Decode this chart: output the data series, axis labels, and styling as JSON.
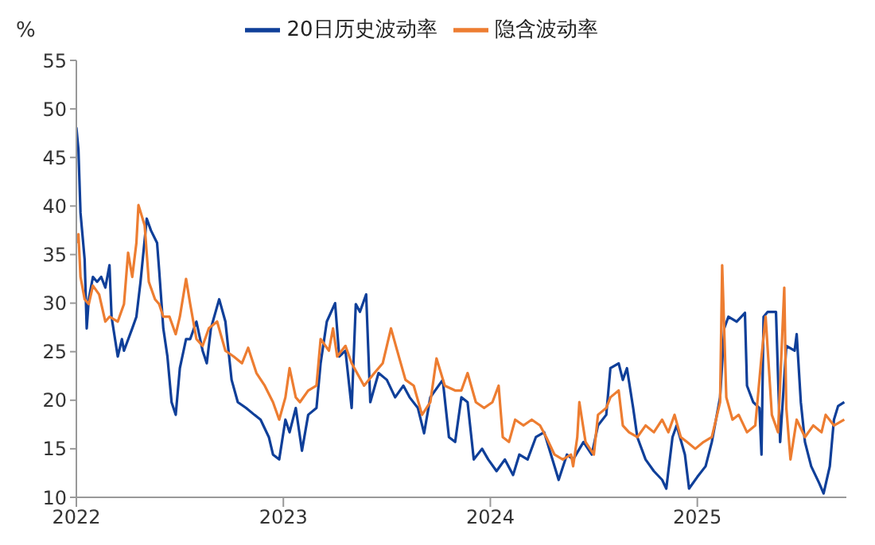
{
  "chart_data": {
    "type": "line",
    "ylabel": "%",
    "xlim": [
      2022,
      2025.72
    ],
    "xticks": [
      2022,
      2023,
      2024,
      2025
    ],
    "ylim": [
      10,
      55
    ],
    "yticks": [
      10,
      15,
      20,
      25,
      30,
      35,
      40,
      45,
      50,
      55
    ],
    "legend": "top",
    "marker": "none",
    "line_style": "solid",
    "series": [
      {
        "name": "20日历史波动率",
        "color": "#0f3f99",
        "x": [
          2022.0,
          2022.01,
          2022.02,
          2022.04,
          2022.05,
          2022.06,
          2022.08,
          2022.1,
          2022.12,
          2022.14,
          2022.16,
          2022.17,
          2022.2,
          2022.22,
          2022.23,
          2022.27,
          2022.29,
          2022.31,
          2022.34,
          2022.36,
          2022.39,
          2022.4,
          2022.42,
          2022.44,
          2022.46,
          2022.48,
          2022.5,
          2022.53,
          2022.55,
          2022.58,
          2022.61,
          2022.63,
          2022.65,
          2022.69,
          2022.72,
          2022.75,
          2022.78,
          2022.82,
          2022.86,
          2022.89,
          2022.93,
          2022.95,
          2022.98,
          2023.01,
          2023.03,
          2023.06,
          2023.09,
          2023.12,
          2023.16,
          2023.18,
          2023.21,
          2023.25,
          2023.27,
          2023.3,
          2023.33,
          2023.35,
          2023.37,
          2023.4,
          2023.42,
          2023.46,
          2023.5,
          2023.54,
          2023.58,
          2023.61,
          2023.65,
          2023.68,
          2023.71,
          2023.77,
          2023.8,
          2023.83,
          2023.86,
          2023.89,
          2023.92,
          2023.96,
          2023.99,
          2024.03,
          2024.07,
          2024.11,
          2024.14,
          2024.18,
          2024.22,
          2024.26,
          2024.3,
          2024.33,
          2024.37,
          2024.4,
          2024.45,
          2024.49,
          2024.52,
          2024.56,
          2024.58,
          2024.62,
          2024.64,
          2024.66,
          2024.69,
          2024.71,
          2024.75,
          2024.79,
          2024.83,
          2024.85,
          2024.88,
          2024.9,
          2024.94,
          2024.96,
          2025.0,
          2025.04,
          2025.07,
          2025.11,
          2025.13,
          2025.15,
          2025.19,
          2025.23,
          2025.24,
          2025.27,
          2025.3,
          2025.31,
          2025.32,
          2025.34,
          2025.38,
          2025.4,
          2025.43,
          2025.47,
          2025.48,
          2025.5,
          2025.52,
          2025.55,
          2025.59,
          2025.61,
          2025.64,
          2025.66,
          2025.68,
          2025.71
        ],
        "values": [
          48.1,
          45.8,
          39.3,
          34.5,
          27.4,
          30.4,
          32.7,
          32.2,
          32.7,
          31.6,
          33.9,
          28.6,
          24.5,
          26.3,
          25.1,
          27.4,
          28.6,
          32.2,
          38.7,
          37.5,
          36.2,
          33.4,
          27.4,
          24.5,
          19.8,
          18.5,
          23.3,
          26.3,
          26.3,
          28.1,
          25.1,
          23.8,
          27.4,
          30.4,
          28.1,
          22.1,
          19.8,
          19.2,
          18.5,
          18.0,
          16.2,
          14.4,
          13.9,
          18.0,
          16.7,
          19.2,
          14.8,
          18.5,
          19.2,
          23.8,
          28.1,
          30.0,
          24.5,
          25.1,
          19.2,
          29.9,
          29.1,
          30.9,
          19.8,
          22.8,
          22.1,
          20.3,
          21.5,
          20.3,
          19.2,
          16.6,
          20.3,
          22.1,
          16.2,
          15.7,
          20.3,
          19.8,
          13.9,
          15.0,
          13.9,
          12.7,
          13.9,
          12.3,
          14.4,
          13.9,
          16.2,
          16.7,
          13.9,
          11.8,
          14.4,
          13.9,
          15.7,
          14.4,
          17.4,
          18.5,
          23.3,
          23.8,
          22.1,
          23.3,
          19.2,
          16.2,
          13.9,
          12.7,
          11.8,
          10.9,
          16.2,
          17.4,
          14.4,
          10.9,
          12.1,
          13.2,
          15.7,
          20.3,
          27.4,
          28.6,
          28.1,
          29.0,
          21.5,
          19.8,
          19.2,
          14.4,
          28.6,
          29.1,
          29.1,
          15.7,
          25.6,
          25.1,
          26.8,
          19.8,
          15.7,
          13.2,
          11.4,
          10.4,
          13.2,
          18.0,
          19.4,
          19.8
        ]
      },
      {
        "name": "隐含波动率",
        "color": "#ed7d31",
        "x": [
          2022.0,
          2022.01,
          2022.02,
          2022.04,
          2022.06,
          2022.08,
          2022.11,
          2022.14,
          2022.16,
          2022.2,
          2022.23,
          2022.25,
          2022.27,
          2022.29,
          2022.3,
          2022.33,
          2022.35,
          2022.38,
          2022.4,
          2022.42,
          2022.45,
          2022.48,
          2022.5,
          2022.53,
          2022.55,
          2022.58,
          2022.61,
          2022.64,
          2022.68,
          2022.72,
          2022.76,
          2022.8,
          2022.83,
          2022.87,
          2022.91,
          2022.95,
          2022.98,
          2023.01,
          2023.03,
          2023.06,
          2023.08,
          2023.12,
          2023.16,
          2023.18,
          2023.22,
          2023.24,
          2023.26,
          2023.3,
          2023.33,
          2023.39,
          2023.44,
          2023.48,
          2023.52,
          2023.55,
          2023.59,
          2023.63,
          2023.67,
          2023.71,
          2023.74,
          2023.78,
          2023.83,
          2023.86,
          2023.89,
          2023.93,
          2023.97,
          2024.01,
          2024.04,
          2024.06,
          2024.09,
          2024.12,
          2024.16,
          2024.2,
          2024.24,
          2024.27,
          2024.31,
          2024.35,
          2024.39,
          2024.4,
          2024.42,
          2024.43,
          2024.46,
          2024.5,
          2024.52,
          2024.56,
          2024.58,
          2024.62,
          2024.64,
          2024.67,
          2024.71,
          2024.75,
          2024.79,
          2024.83,
          2024.86,
          2024.89,
          2024.92,
          2024.95,
          2024.99,
          2025.03,
          2025.07,
          2025.11,
          2025.12,
          2025.14,
          2025.17,
          2025.2,
          2025.24,
          2025.28,
          2025.31,
          2025.33,
          2025.36,
          2025.39,
          2025.42,
          2025.43,
          2025.45,
          2025.48,
          2025.52,
          2025.56,
          2025.6,
          2025.62,
          2025.66,
          2025.71
        ],
        "values": [
          36.2,
          37.1,
          32.7,
          30.4,
          29.9,
          31.8,
          30.9,
          28.1,
          28.6,
          28.1,
          29.9,
          35.2,
          32.7,
          36.2,
          40.1,
          38.0,
          32.2,
          30.4,
          29.9,
          28.6,
          28.6,
          26.8,
          28.6,
          32.5,
          29.9,
          26.3,
          25.6,
          27.4,
          28.1,
          25.1,
          24.5,
          23.8,
          25.4,
          22.8,
          21.5,
          19.8,
          18.0,
          20.3,
          23.3,
          20.3,
          19.8,
          21.0,
          21.5,
          26.3,
          25.1,
          27.4,
          24.5,
          25.6,
          23.8,
          21.5,
          22.8,
          23.8,
          27.4,
          25.1,
          22.1,
          21.5,
          18.5,
          19.8,
          24.3,
          21.5,
          21.0,
          21.0,
          22.8,
          19.8,
          19.2,
          19.8,
          21.5,
          16.2,
          15.7,
          18.0,
          17.4,
          18.0,
          17.4,
          16.2,
          14.4,
          13.9,
          14.4,
          13.2,
          16.2,
          19.8,
          15.7,
          14.4,
          18.5,
          19.2,
          20.3,
          21.0,
          17.4,
          16.7,
          16.2,
          17.4,
          16.7,
          18.0,
          16.7,
          18.5,
          16.2,
          15.7,
          15.0,
          15.7,
          16.2,
          19.8,
          33.9,
          20.3,
          18.0,
          18.5,
          16.7,
          17.4,
          24.5,
          28.6,
          18.5,
          16.7,
          31.6,
          19.2,
          13.9,
          18.0,
          16.2,
          17.4,
          16.7,
          18.5,
          17.4,
          18.0
        ]
      }
    ]
  }
}
